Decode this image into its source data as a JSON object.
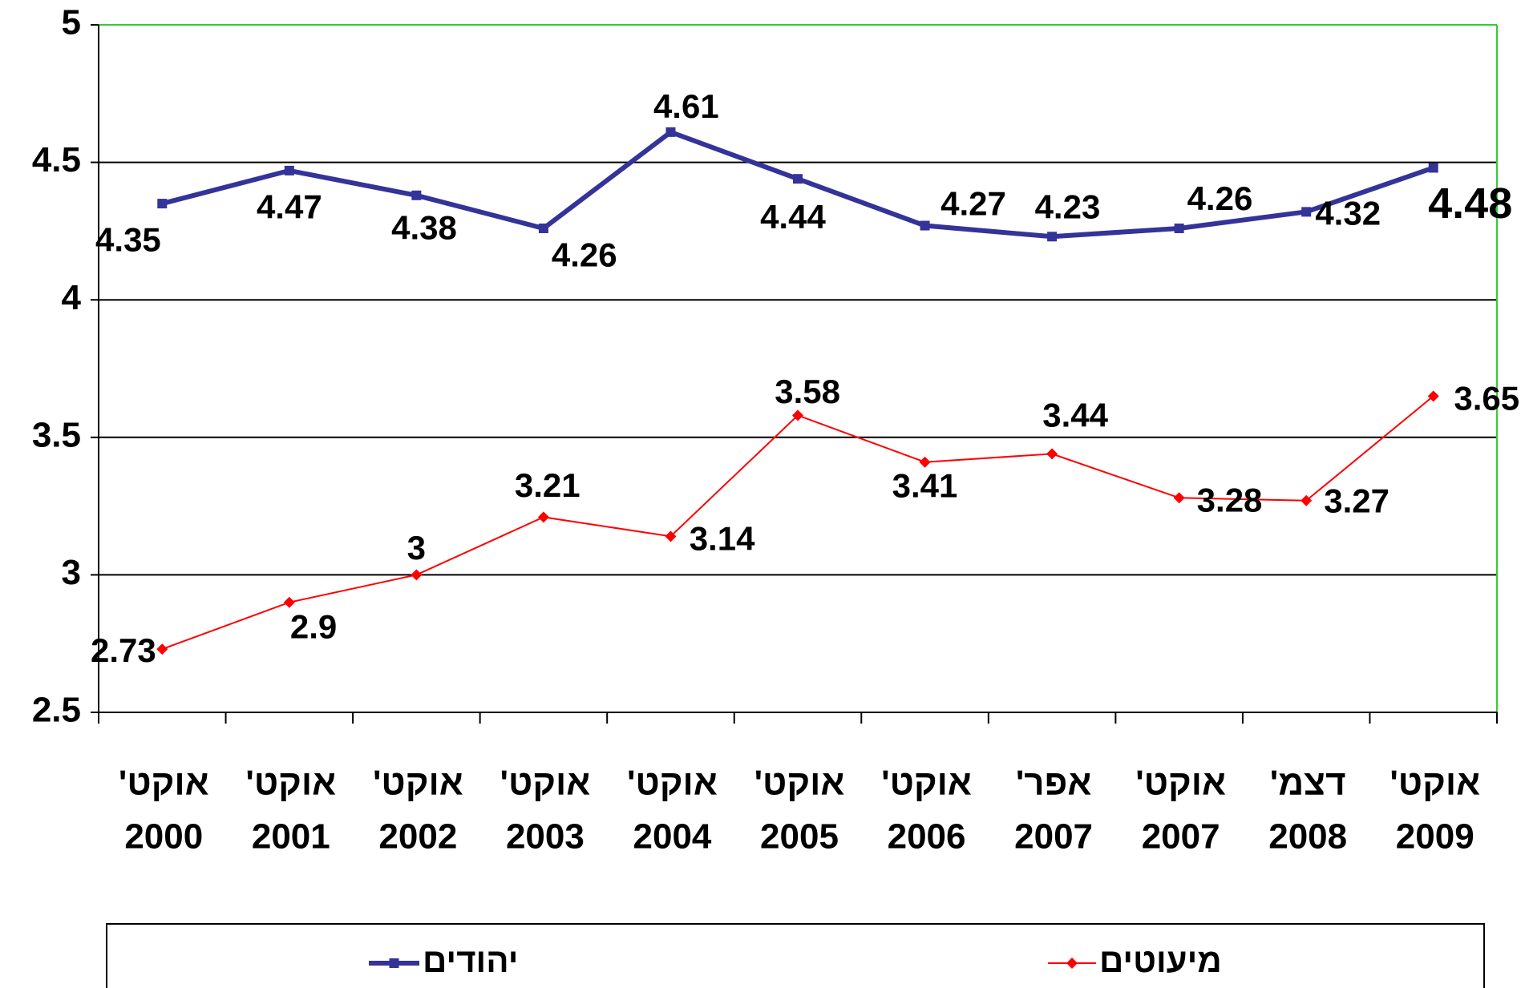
{
  "chart_data": {
    "type": "line",
    "categories": [
      [
        "אוקט'",
        "2000"
      ],
      [
        "אוקט'",
        "2001"
      ],
      [
        "אוקט'",
        "2002"
      ],
      [
        "אוקט'",
        "2003"
      ],
      [
        "אוקט'",
        "2004"
      ],
      [
        "אוקט'",
        "2005"
      ],
      [
        "אוקט'",
        "2006"
      ],
      [
        "אפר'",
        "2007"
      ],
      [
        "אוקט'",
        "2007"
      ],
      [
        "דצמ'",
        "2008"
      ],
      [
        "אוקט'",
        "2009"
      ]
    ],
    "series": [
      {
        "name": "יהודים",
        "color": "#333399",
        "values": [
          4.35,
          4.47,
          4.38,
          4.26,
          4.61,
          4.44,
          4.27,
          4.23,
          4.26,
          4.32,
          4.48
        ]
      },
      {
        "name": "מיעוטים",
        "color": "#ff0000",
        "values": [
          2.73,
          2.9,
          3,
          3.21,
          3.14,
          3.58,
          3.41,
          3.44,
          3.28,
          3.27,
          3.65
        ]
      }
    ],
    "ylim": [
      2.5,
      5
    ],
    "yticks": [
      2.5,
      3,
      3.5,
      4,
      4.5,
      5
    ],
    "grid": true,
    "legend": "bottom"
  }
}
